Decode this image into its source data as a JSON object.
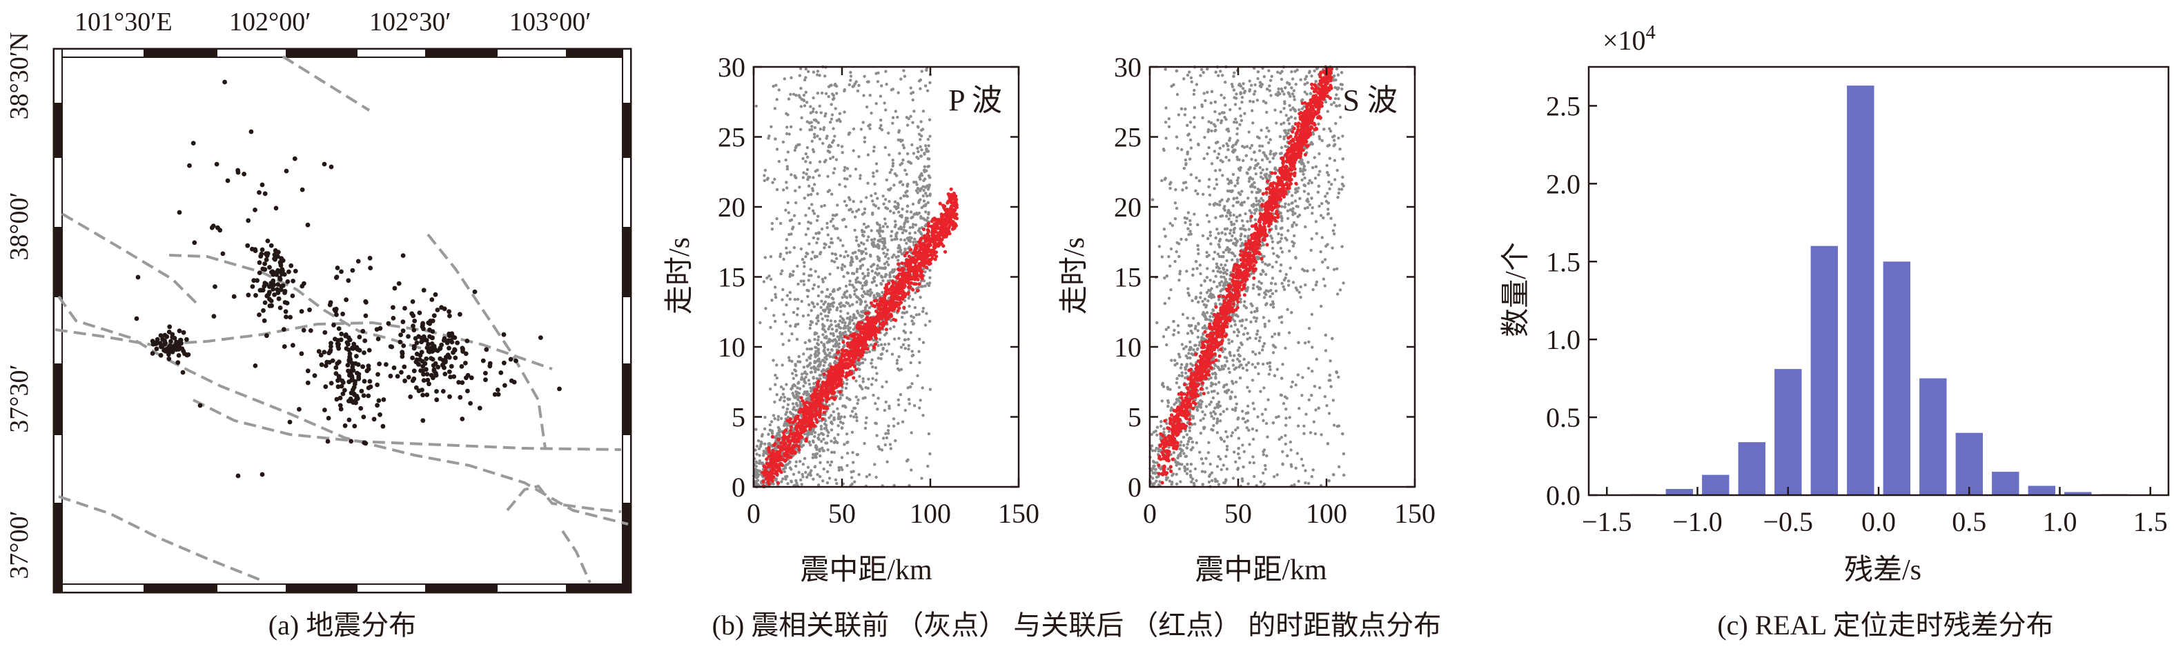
{
  "panels": {
    "a": {
      "caption": "(a) 地震分布",
      "top_ticks": [
        "101°30′E",
        "102°00′",
        "102°30′",
        "103°00′"
      ],
      "left_ticks": [
        "38°30′N",
        "38°00′",
        "37°30′",
        "37°00′"
      ]
    },
    "b": {
      "caption": "(b) 震相关联前 （灰点） 与关联后 （红点） 的时距散点分布",
      "p_label": "P 波",
      "s_label": "S 波",
      "xlabel": "震中距/km",
      "ylabel": "走时/s",
      "xticks": [
        "0",
        "50",
        "100",
        "150"
      ],
      "yticks": [
        "0",
        "5",
        "10",
        "15",
        "20",
        "25",
        "30"
      ]
    },
    "c": {
      "caption": "(c) REAL 定位走时残差分布",
      "multiplier": "×10",
      "multiplier_exp": "4",
      "xlabel": "残差/s",
      "ylabel": "数量/个",
      "xticks": [
        "−1.5",
        "−1.0",
        "−0.5",
        "0.0",
        "0.5",
        "1.0",
        "1.5"
      ],
      "yticks": [
        "0.0",
        "0.5",
        "1.0",
        "1.5",
        "2.0",
        "2.5"
      ]
    }
  },
  "colors": {
    "bar": "#6b6fc4",
    "red": "#e8242a",
    "gray": "#8c8c8c",
    "fault": "#9a9a9a",
    "ink": "#231815"
  },
  "chart_data": [
    {
      "type": "scatter",
      "title": "P 波",
      "xlabel": "震中距/km",
      "ylabel": "走时/s",
      "xlim": [
        0,
        150
      ],
      "ylim": [
        0,
        30
      ],
      "series": [
        {
          "name": "关联前（灰点）",
          "trend": {
            "x": [
              0,
              100
            ],
            "y": [
              0,
              30
            ]
          },
          "spread": "0–30 s"
        },
        {
          "name": "关联后（红点）",
          "trend": {
            "x": [
              5,
              115
            ],
            "y": [
              0.5,
              20
            ]
          }
        }
      ]
    },
    {
      "type": "scatter",
      "title": "S 波",
      "xlabel": "震中距/km",
      "ylabel": "走时/s",
      "xlim": [
        0,
        150
      ],
      "ylim": [
        0,
        30
      ],
      "series": [
        {
          "name": "关联前（灰点）",
          "trend": {
            "x": [
              0,
              110
            ],
            "y": [
              0,
              30
            ]
          }
        },
        {
          "name": "关联后（红点）",
          "trend": {
            "x": [
              5,
              103
            ],
            "y": [
              1.5,
              30
            ]
          }
        }
      ]
    },
    {
      "type": "bar",
      "title": "REAL 定位走时残差分布",
      "xlabel": "残差/s",
      "ylabel": "数量/个",
      "multiplier": 10000,
      "categories": [
        -1.3,
        -1.1,
        -0.9,
        -0.7,
        -0.5,
        -0.3,
        -0.1,
        0.1,
        0.3,
        0.5,
        0.7,
        0.9,
        1.1,
        1.3
      ],
      "values": [
        0.005,
        0.04,
        0.13,
        0.34,
        0.81,
        1.6,
        2.63,
        1.5,
        0.75,
        0.4,
        0.15,
        0.06,
        0.02,
        0.005
      ],
      "xlim": [
        -1.6,
        1.6
      ],
      "ylim": [
        0,
        2.75
      ]
    }
  ]
}
